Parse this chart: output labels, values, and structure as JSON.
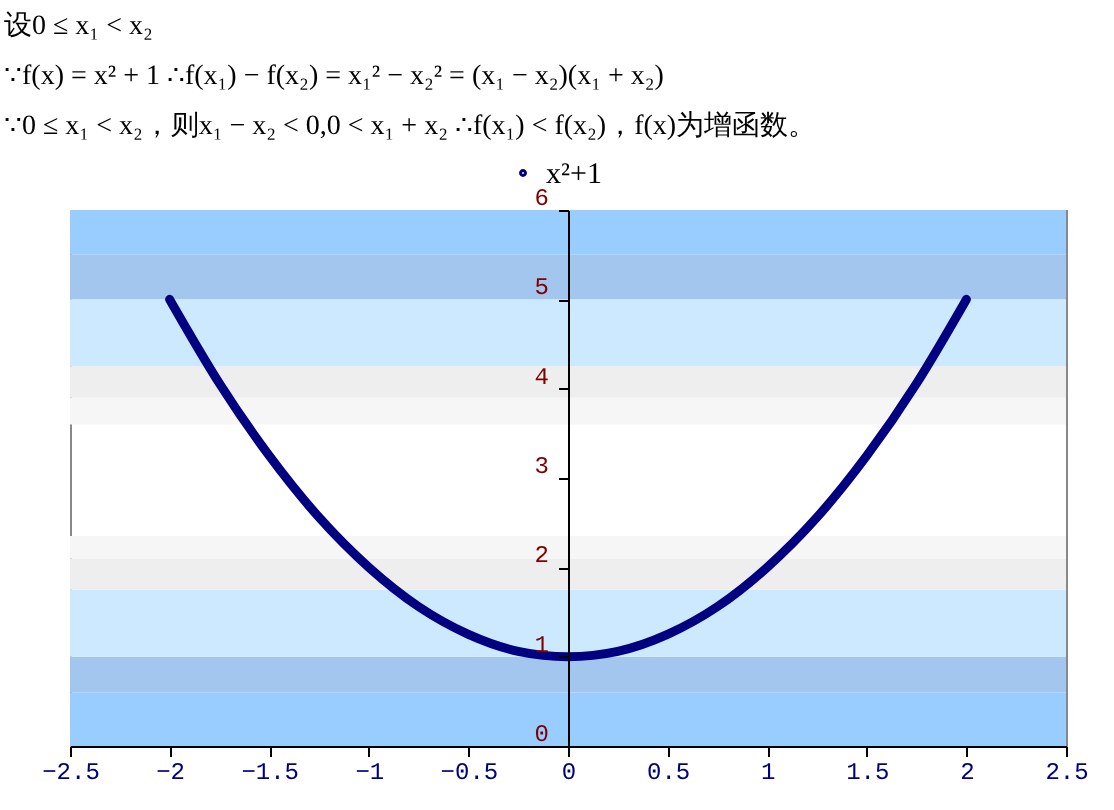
{
  "chart_data": {
    "type": "line",
    "annotations": [
      "设0 ≤ x₁ < x₂",
      "∵f(x) = x² + 1   ∴f(x₁) − f(x₂) = x₁² − x₂² = (x₁ − x₂)(x₁ + x₂)",
      "∵0 ≤ x₁ < x₂，则x₁ − x₂ < 0,0 < x₁ + x₂   ∴f(x₁) < f(x₂)，f(x)为增函数。"
    ],
    "x": [
      -2,
      -1.75,
      -1.5,
      -1.25,
      -1,
      -0.75,
      -0.5,
      -0.25,
      0,
      0.25,
      0.5,
      0.75,
      1,
      1.25,
      1.5,
      1.75,
      2
    ],
    "series": [
      {
        "name": "x²+1",
        "color": "#000080",
        "values": [
          5,
          4.06,
          3.25,
          2.56,
          2,
          1.56,
          1.25,
          1.06,
          1,
          1.06,
          1.25,
          1.56,
          2,
          2.56,
          3.25,
          4.06,
          5
        ]
      }
    ],
    "xlim": [
      -2.5,
      2.5
    ],
    "xticks": [
      -2.5,
      -2,
      -1.5,
      -1,
      -0.5,
      0,
      0.5,
      1,
      1.5,
      2,
      2.5
    ],
    "ylim": [
      0,
      6
    ],
    "yticks": [
      0,
      1,
      2,
      3,
      4,
      5,
      6
    ],
    "bands": [
      {
        "axis": "y",
        "from": 0,
        "to": 0.6,
        "color": "#99ccff"
      },
      {
        "axis": "y",
        "from": 0.6,
        "to": 1,
        "color": "#a3c6ee"
      },
      {
        "axis": "y",
        "from": 1,
        "to": 1.75,
        "color": "#cce9ff"
      },
      {
        "axis": "y",
        "from": 1.75,
        "to": 2.1,
        "color": "#eeeeee"
      },
      {
        "axis": "y",
        "from": 2.1,
        "to": 2.35,
        "color": "#f6f6f6"
      },
      {
        "axis": "y",
        "from": 3.6,
        "to": 3.9,
        "color": "#f6f6f6"
      },
      {
        "axis": "y",
        "from": 3.9,
        "to": 4.25,
        "color": "#eeeeee"
      },
      {
        "axis": "y",
        "from": 4.25,
        "to": 5,
        "color": "#cce9ff"
      },
      {
        "axis": "y",
        "from": 5,
        "to": 5.5,
        "color": "#a3c6ee"
      },
      {
        "axis": "y",
        "from": 5.5,
        "to": 6,
        "color": "#99ccff"
      }
    ],
    "legend": "top",
    "marker": "none",
    "line_style": "solid",
    "grid": false
  }
}
